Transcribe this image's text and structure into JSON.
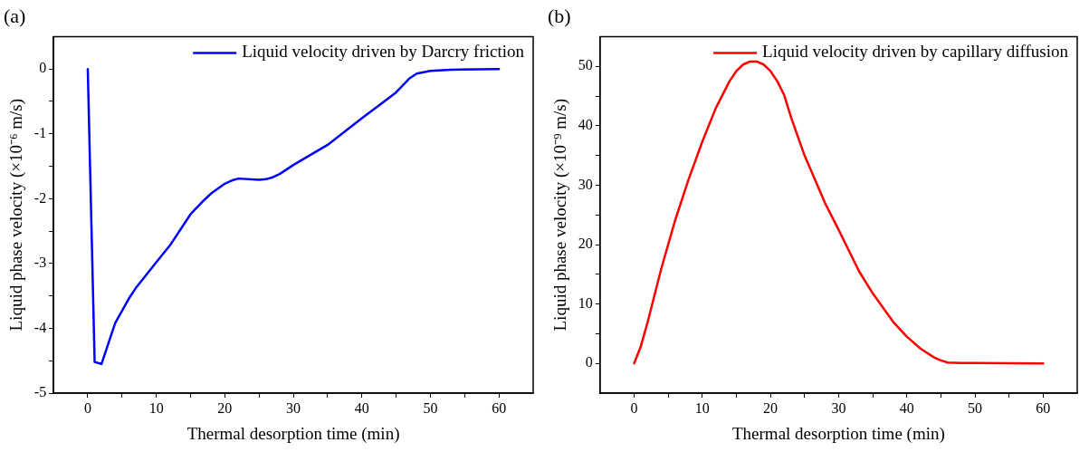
{
  "chart_data": [
    {
      "type": "line",
      "title": "(a)",
      "xlabel": "Thermal desorption time (min)",
      "ylabel": "Liquid phase velocity (×10⁻⁶ m/s)",
      "xlim": [
        -5,
        65
      ],
      "xticks": [
        0,
        {
          "value": 5,
          "label": null
        },
        10,
        {
          "value": 15,
          "label": null
        },
        20,
        {
          "value": 25,
          "label": null
        },
        30,
        {
          "value": 35,
          "label": null
        },
        40,
        {
          "value": 45,
          "label": null
        },
        50,
        {
          "value": 55,
          "label": null
        },
        60
      ],
      "ylim": [
        -5,
        0.5
      ],
      "yticks": [
        -5,
        {
          "value": -4.5,
          "label": null
        },
        -4,
        {
          "value": -3.5,
          "label": null
        },
        -3,
        {
          "value": -2.5,
          "label": null
        },
        -2,
        {
          "value": -1.5,
          "label": null
        },
        -1,
        {
          "value": -0.5,
          "label": null
        },
        0
      ],
      "grid": false,
      "legend": "top right",
      "marker": "none",
      "line_style": "solid",
      "series": [
        {
          "name": "Liquid velocity driven by Darcry friction",
          "color": "#0000ff",
          "x": [
            0,
            1,
            2,
            4,
            6,
            7,
            10,
            12,
            15,
            17,
            18,
            20,
            21,
            22,
            25,
            26,
            27,
            28,
            30,
            35,
            40,
            43,
            45,
            47,
            48,
            50,
            53,
            60
          ],
          "values": [
            0,
            -4.52,
            -4.55,
            -3.92,
            -3.54,
            -3.38,
            -2.98,
            -2.72,
            -2.24,
            -2.02,
            -1.92,
            -1.77,
            -1.72,
            -1.69,
            -1.71,
            -1.7,
            -1.67,
            -1.62,
            -1.48,
            -1.17,
            -0.76,
            -0.52,
            -0.36,
            -0.14,
            -0.07,
            -0.03,
            -0.01,
            0
          ]
        }
      ]
    },
    {
      "type": "line",
      "title": "(b)",
      "xlabel": "Thermal desorption time (min)",
      "ylabel": "Liquid phase velocity (×10⁻⁹ m/s)",
      "xlim": [
        -5,
        65
      ],
      "xticks": [
        0,
        {
          "value": 5,
          "label": null
        },
        10,
        {
          "value": 15,
          "label": null
        },
        20,
        {
          "value": 25,
          "label": null
        },
        30,
        {
          "value": 35,
          "label": null
        },
        40,
        {
          "value": 45,
          "label": null
        },
        50,
        {
          "value": 55,
          "label": null
        },
        60
      ],
      "ylim": [
        -5,
        55
      ],
      "yticks": [
        0,
        {
          "value": 5,
          "label": null
        },
        10,
        {
          "value": 15,
          "label": null
        },
        20,
        {
          "value": 25,
          "label": null
        },
        30,
        {
          "value": 35,
          "label": null
        },
        40,
        {
          "value": 45,
          "label": null
        },
        50
      ],
      "grid": false,
      "legend": "top right",
      "marker": "none",
      "line_style": "solid",
      "series": [
        {
          "name": "Liquid velocity driven by capillary diffusion",
          "color": "#ff0000",
          "x": [
            0,
            1,
            2,
            4,
            6,
            8,
            10,
            12,
            14,
            15,
            16,
            17,
            18,
            19,
            20,
            21,
            22,
            23,
            25,
            28,
            30,
            33,
            35,
            38,
            40,
            42,
            44,
            45,
            46,
            48,
            50,
            60
          ],
          "values": [
            0,
            2.9,
            7,
            16,
            24,
            31,
            37.3,
            43,
            47.5,
            49.2,
            50.3,
            50.8,
            50.8,
            50.3,
            49.2,
            47.5,
            45.2,
            41.5,
            35,
            27,
            22.5,
            15.5,
            11.8,
            7,
            4.5,
            2.5,
            1,
            0.5,
            0.15,
            0.05,
            0.05,
            0
          ]
        }
      ]
    }
  ]
}
